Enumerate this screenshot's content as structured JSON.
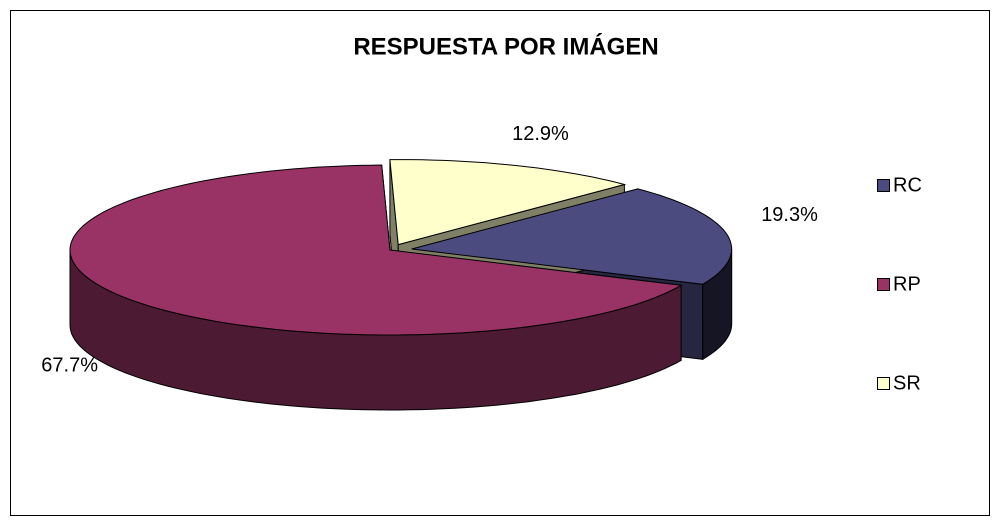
{
  "chart_data": {
    "type": "pie",
    "title": "RESPUESTA POR IMÁGEN",
    "categories": [
      "RC",
      "RP",
      "SR"
    ],
    "values": [
      19.3,
      67.7,
      12.9
    ],
    "value_labels": [
      "19.3%",
      "67.7%",
      "12.9%"
    ],
    "colors": [
      "#4b4b80",
      "#993366",
      "#ffffcc"
    ],
    "legend": "right"
  }
}
